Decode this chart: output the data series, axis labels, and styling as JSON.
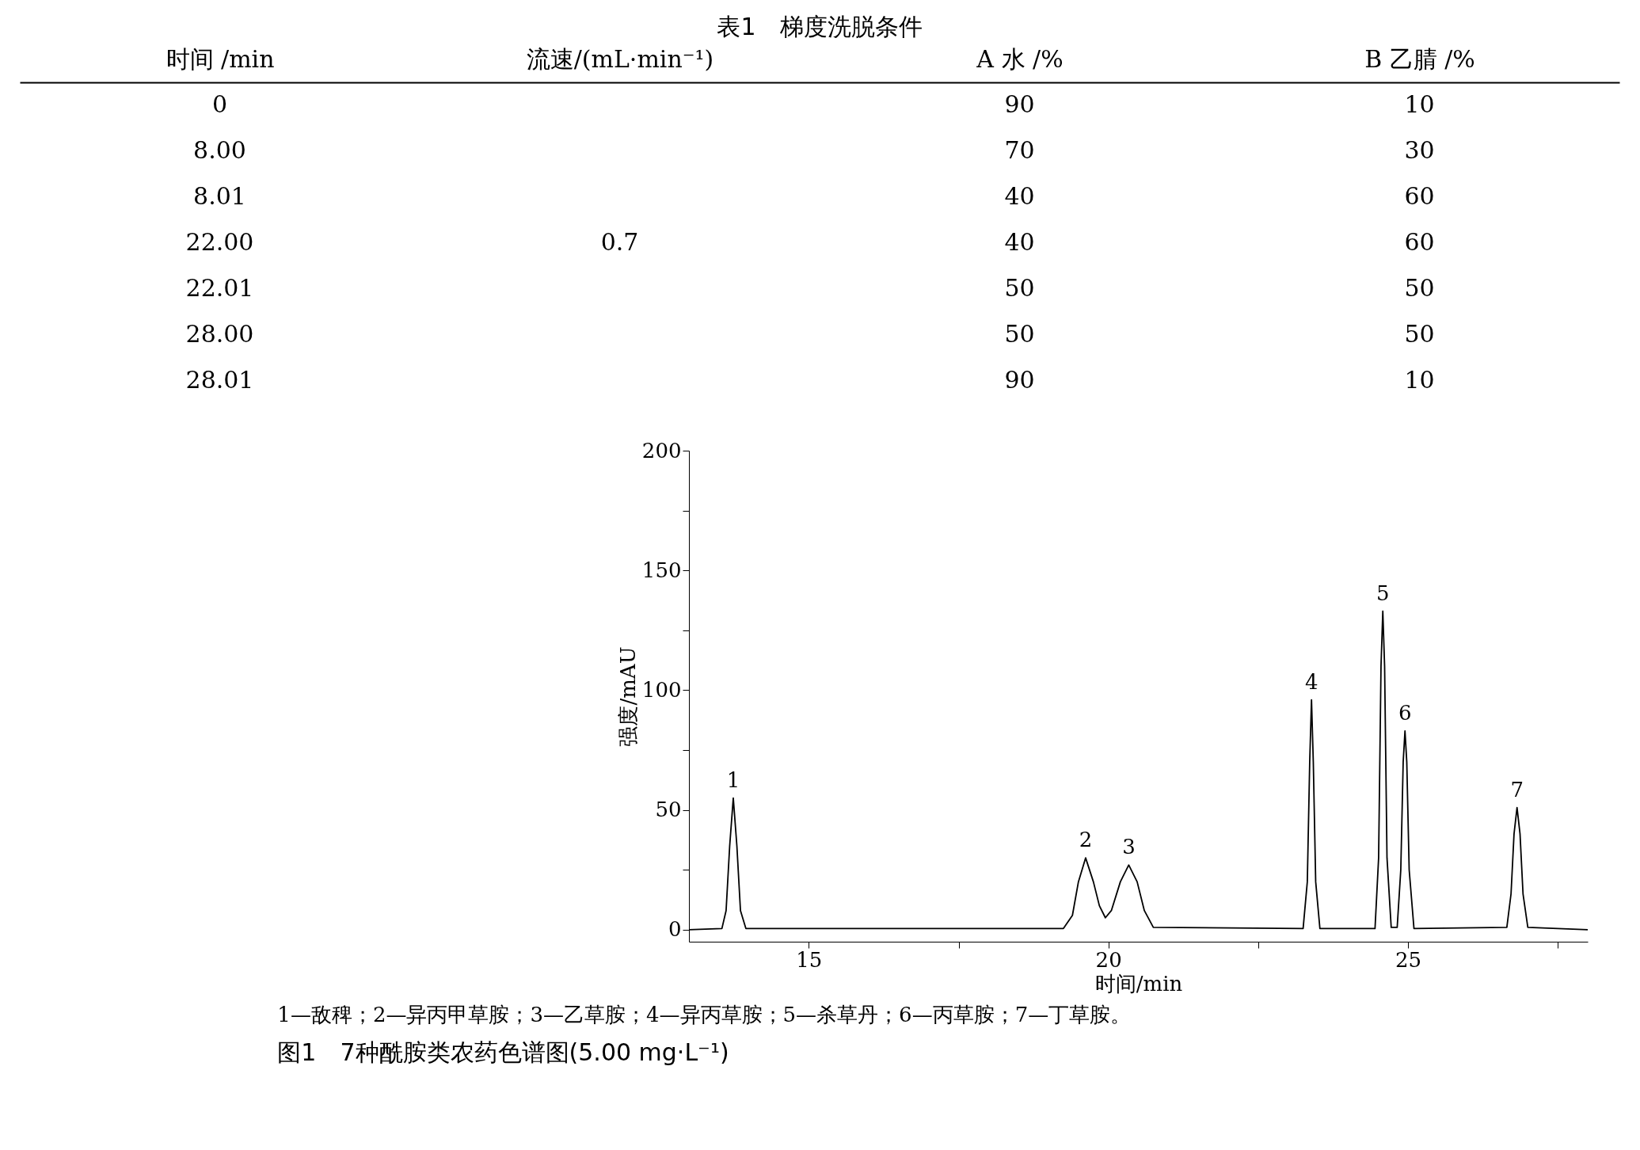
{
  "chart_data": [
    {
      "type": "other",
      "title": "表1　梯度洗脱条件",
      "categories": [
        "时间 /min",
        "流速/(mL·min⁻¹)",
        "A 水 /%",
        "B 乙腈 /%"
      ],
      "annotations": [
        {
          "text": "0",
          "x": "时间 /min"
        },
        {
          "text": "8.00",
          "x": "时间 /min"
        },
        {
          "text": "8.01",
          "x": "时间 /min"
        },
        {
          "text": "22.00",
          "x": "时间 /min"
        },
        {
          "text": "22.01",
          "x": "时间 /min"
        },
        {
          "text": "28.00",
          "x": "时间 /min"
        },
        {
          "text": "28.01",
          "x": "时间 /min"
        },
        {
          "text": "0.7",
          "x": "流速/(mL·min⁻¹)"
        },
        {
          "text": "90",
          "x": "A 水 /%"
        },
        {
          "text": "70",
          "x": "A 水 /%"
        },
        {
          "text": "40",
          "x": "A 水 /%"
        },
        {
          "text": "40",
          "x": "A 水 /%"
        },
        {
          "text": "50",
          "x": "A 水 /%"
        },
        {
          "text": "50",
          "x": "A 水 /%"
        },
        {
          "text": "90",
          "x": "A 水 /%"
        },
        {
          "text": "10",
          "x": "B 乙腈 /%"
        },
        {
          "text": "30",
          "x": "B 乙腈 /%"
        },
        {
          "text": "60",
          "x": "B 乙腈 /%"
        },
        {
          "text": "60",
          "x": "B 乙腈 /%"
        },
        {
          "text": "50",
          "x": "B 乙腈 /%"
        },
        {
          "text": "50",
          "x": "B 乙腈 /%"
        },
        {
          "text": "10",
          "x": "B 乙腈 /%"
        }
      ]
    },
    {
      "type": "line",
      "xlabel": "时间/min",
      "ylabel": "强度/mAU",
      "xlim": [
        13,
        28
      ],
      "ylim": [
        -5,
        200
      ],
      "xticks": [
        15,
        {
          "value": 17.5,
          "label": null
        },
        20,
        {
          "value": 22.5,
          "label": null
        },
        25,
        {
          "value": 27.5,
          "label": null
        }
      ],
      "yticks": [
        0,
        {
          "value": 25,
          "label": null
        },
        50,
        {
          "value": 75,
          "label": null
        },
        100,
        {
          "value": 125,
          "label": null
        },
        150,
        {
          "value": 175,
          "label": null
        },
        200
      ],
      "grid": false,
      "legend": false,
      "marker": "none",
      "line_style": "solid",
      "x": [
        13,
        13.55,
        13.62,
        13.68,
        13.74,
        13.8,
        13.86,
        13.95,
        19.25,
        19.4,
        19.5,
        19.62,
        19.75,
        19.85,
        19.95,
        20.05,
        20.2,
        20.34,
        20.48,
        20.6,
        20.75,
        23.25,
        23.32,
        23.36,
        23.39,
        23.42,
        23.46,
        23.53,
        24.45,
        24.51,
        24.55,
        24.58,
        24.61,
        24.65,
        24.72,
        24.82,
        24.88,
        24.92,
        24.95,
        24.98,
        25.02,
        25.1,
        26.65,
        26.72,
        26.77,
        26.82,
        26.87,
        26.92,
        27.0,
        28
      ],
      "series": [
        {
          "color": "#000000",
          "values": [
            0,
            0.5,
            8,
            35,
            55,
            35,
            8,
            0.5,
            0.5,
            6,
            20,
            30,
            20,
            10,
            5,
            8,
            20,
            27,
            20,
            8,
            1,
            0.5,
            20,
            70,
            96,
            70,
            20,
            0.5,
            0.5,
            30,
            110,
            133,
            110,
            30,
            1,
            1,
            25,
            70,
            83,
            70,
            25,
            0.5,
            1,
            15,
            40,
            51,
            40,
            15,
            1,
            0
          ]
        }
      ],
      "annotations": [
        {
          "text": "1",
          "x": 13.74,
          "y": 55
        },
        {
          "text": "2",
          "x": 19.62,
          "y": 30
        },
        {
          "text": "3",
          "x": 20.34,
          "y": 27
        },
        {
          "text": "4",
          "x": 23.39,
          "y": 96
        },
        {
          "text": "5",
          "x": 24.58,
          "y": 133
        },
        {
          "text": "6",
          "x": 24.95,
          "y": 83
        },
        {
          "text": "7",
          "x": 26.82,
          "y": 51
        },
        "1—敌稗；2—异丙甲草胺；3—乙草胺；4—异丙草胺；5—杀草丹；6—丙草胺；7—丁草胺。",
        "图1　7种酰胺类农药色谱图(5.00 mg·L⁻¹)"
      ]
    }
  ]
}
